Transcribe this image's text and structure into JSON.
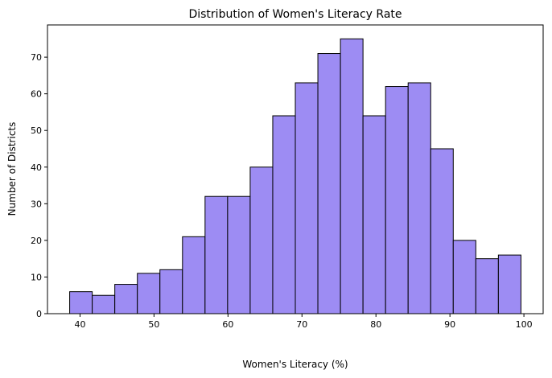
{
  "chart_data": {
    "type": "bar",
    "title": "Distribution of Women's Literacy Rate",
    "xlabel": "Women's Literacy (%)",
    "ylabel": "Number of Districts",
    "xlim": [
      35.6,
      102.6
    ],
    "ylim": [
      0,
      78.8
    ],
    "grid": false,
    "bar_color": "#9d8cf3",
    "edge_color": "#000000",
    "x_ticks": [
      40,
      50,
      60,
      70,
      80,
      90,
      100
    ],
    "y_ticks": [
      0,
      10,
      20,
      30,
      40,
      50,
      60,
      70
    ],
    "bins": [
      {
        "x0": 38.6,
        "x1": 41.65,
        "count": 6
      },
      {
        "x0": 41.65,
        "x1": 44.7,
        "count": 5
      },
      {
        "x0": 44.7,
        "x1": 47.75,
        "count": 8
      },
      {
        "x0": 47.75,
        "x1": 50.8,
        "count": 11
      },
      {
        "x0": 50.8,
        "x1": 53.85,
        "count": 12
      },
      {
        "x0": 53.85,
        "x1": 56.9,
        "count": 21
      },
      {
        "x0": 56.9,
        "x1": 59.95,
        "count": 32
      },
      {
        "x0": 59.95,
        "x1": 63.0,
        "count": 32
      },
      {
        "x0": 63.0,
        "x1": 66.05,
        "count": 40
      },
      {
        "x0": 66.05,
        "x1": 69.1,
        "count": 54
      },
      {
        "x0": 69.1,
        "x1": 72.15,
        "count": 63
      },
      {
        "x0": 72.15,
        "x1": 75.2,
        "count": 71
      },
      {
        "x0": 75.2,
        "x1": 78.25,
        "count": 75
      },
      {
        "x0": 78.25,
        "x1": 81.3,
        "count": 54
      },
      {
        "x0": 81.3,
        "x1": 84.35,
        "count": 62
      },
      {
        "x0": 84.35,
        "x1": 87.4,
        "count": 63
      },
      {
        "x0": 87.4,
        "x1": 90.45,
        "count": 45
      },
      {
        "x0": 90.45,
        "x1": 93.5,
        "count": 20
      },
      {
        "x0": 93.5,
        "x1": 96.55,
        "count": 15
      },
      {
        "x0": 96.55,
        "x1": 99.6,
        "count": 16
      }
    ]
  }
}
